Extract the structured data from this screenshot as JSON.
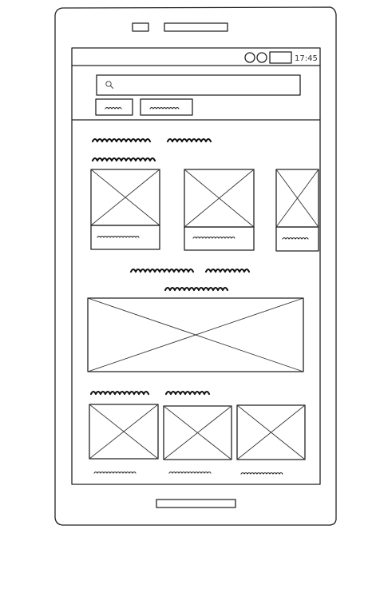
{
  "status_bar": {
    "time": "17:45"
  },
  "colors": {
    "ink": "#222222",
    "paper": "#ffffff"
  },
  "icons": {
    "search": "magnifier-icon",
    "signal": "circle-icon",
    "wifi": "circle-icon",
    "battery": "battery-icon"
  },
  "search": {
    "placeholder": ""
  },
  "sections": [
    {
      "kind": "carousel-small",
      "items": 3
    },
    {
      "kind": "hero-banner",
      "items": 1
    },
    {
      "kind": "grid-row",
      "items": 3
    }
  ]
}
